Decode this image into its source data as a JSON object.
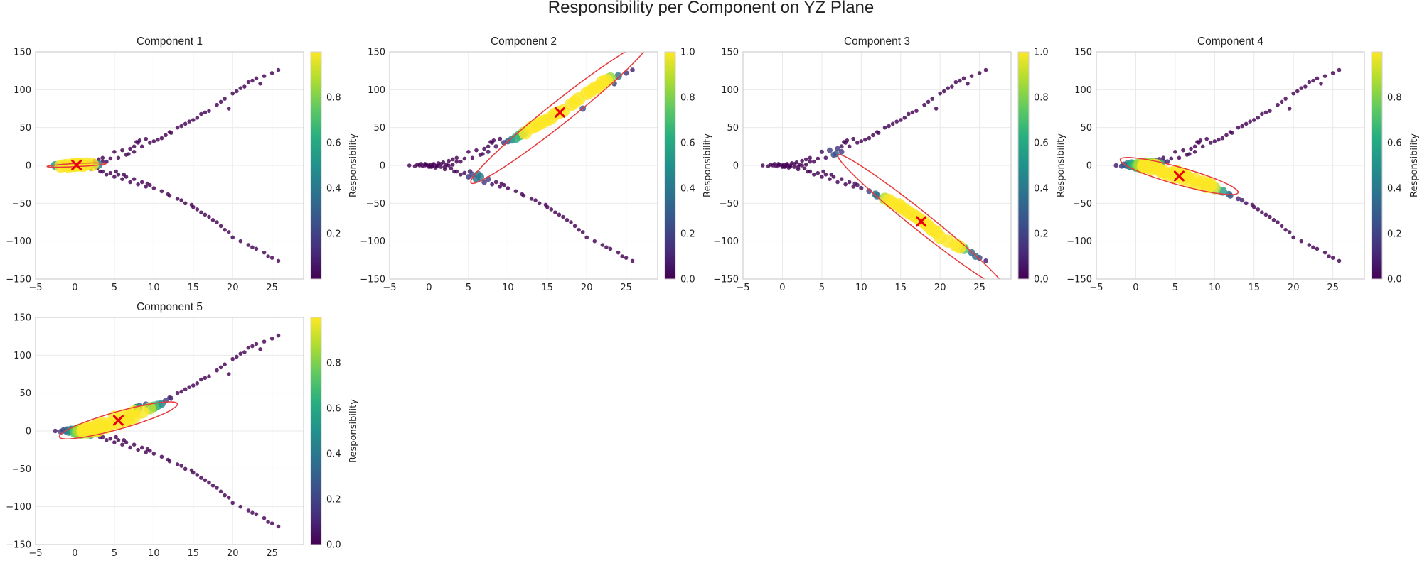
{
  "figure": {
    "title": "Responsibility per Component on YZ Plane",
    "colorbar_label": "Responsibility"
  },
  "chart_data": {
    "type": "scatter",
    "colormap": "viridis",
    "xlim": [
      -5,
      29
    ],
    "ylim": [
      -150,
      150
    ],
    "xticks": [
      "−5",
      "0",
      "5",
      "10",
      "15",
      "20",
      "25"
    ],
    "yticks": [
      "150",
      "100",
      "50",
      "0",
      "−50",
      "−100",
      "−150"
    ],
    "grid": true,
    "ellipse_color": "#e8393b",
    "center_marker_color": "#e8000b",
    "points": {
      "left": [
        [
          -2.5,
          0
        ],
        [
          -1.8,
          -1
        ],
        [
          -1.5,
          1
        ],
        [
          -1.2,
          0
        ],
        [
          -1,
          2
        ],
        [
          -0.8,
          -1
        ],
        [
          -0.5,
          0
        ],
        [
          -0.3,
          1
        ],
        [
          0,
          -2
        ],
        [
          0,
          0
        ],
        [
          0.2,
          1
        ],
        [
          0.4,
          -1
        ],
        [
          0.6,
          2
        ],
        [
          0.8,
          -3
        ],
        [
          1,
          0
        ],
        [
          1.2,
          3
        ],
        [
          1.5,
          -2
        ],
        [
          1.8,
          4
        ],
        [
          2,
          -5
        ],
        [
          2.2,
          1
        ],
        [
          2.5,
          6
        ],
        [
          2.8,
          -4
        ],
        [
          3,
          8
        ],
        [
          3.2,
          -8
        ],
        [
          3.5,
          5
        ],
        [
          0.5,
          0.5
        ],
        [
          1,
          -1.5
        ],
        [
          1.5,
          2
        ],
        [
          2,
          -2
        ],
        [
          2.5,
          0
        ],
        [
          3,
          1
        ],
        [
          -0.5,
          2
        ],
        [
          0.3,
          -2
        ]
      ],
      "upper": [
        [
          3.5,
          10
        ],
        [
          4,
          5
        ],
        [
          4.5,
          9
        ],
        [
          5,
          18
        ],
        [
          5.5,
          10
        ],
        [
          6,
          20
        ],
        [
          6.5,
          14
        ],
        [
          7,
          22
        ],
        [
          7.5,
          18
        ],
        [
          8,
          30
        ],
        [
          8.5,
          25
        ],
        [
          9,
          35
        ],
        [
          9.5,
          30
        ],
        [
          10,
          32
        ],
        [
          11,
          36
        ],
        [
          11.5,
          40
        ],
        [
          12,
          44
        ],
        [
          13,
          50
        ],
        [
          13.5,
          52
        ],
        [
          14,
          55
        ],
        [
          15,
          60
        ],
        [
          15.5,
          63
        ],
        [
          16,
          68
        ],
        [
          17,
          72
        ],
        [
          18,
          80
        ],
        [
          18.5,
          84
        ],
        [
          19,
          88
        ],
        [
          20,
          95
        ],
        [
          20.5,
          98
        ],
        [
          21,
          102
        ],
        [
          22,
          110
        ],
        [
          22.5,
          112
        ],
        [
          23,
          115
        ],
        [
          24,
          118
        ],
        [
          25,
          122
        ],
        [
          25.8,
          126
        ],
        [
          7.8,
          31
        ],
        [
          8.2,
          33
        ],
        [
          7.5,
          25
        ],
        [
          6.8,
          15
        ],
        [
          12.2,
          43
        ],
        [
          14.5,
          58
        ],
        [
          16.5,
          70
        ],
        [
          19.5,
          75
        ],
        [
          21.5,
          104
        ],
        [
          23.5,
          108
        ],
        [
          10.5,
          34
        ]
      ],
      "lower": [
        [
          3.5,
          -8
        ],
        [
          4,
          -12
        ],
        [
          4.5,
          -10
        ],
        [
          5,
          -15
        ],
        [
          5.5,
          -12
        ],
        [
          6,
          -18
        ],
        [
          6.5,
          -15
        ],
        [
          7,
          -22
        ],
        [
          7.5,
          -18
        ],
        [
          8,
          -25
        ],
        [
          8.5,
          -22
        ],
        [
          9,
          -28
        ],
        [
          9.5,
          -26
        ],
        [
          10,
          -30
        ],
        [
          11,
          -34
        ],
        [
          12,
          -40
        ],
        [
          13,
          -44
        ],
        [
          13.5,
          -46
        ],
        [
          14,
          -50
        ],
        [
          15,
          -55
        ],
        [
          15.5,
          -58
        ],
        [
          16,
          -62
        ],
        [
          16.5,
          -65
        ],
        [
          17,
          -68
        ],
        [
          18,
          -75
        ],
        [
          18.5,
          -80
        ],
        [
          19,
          -85
        ],
        [
          20,
          -95
        ],
        [
          21,
          -100
        ],
        [
          22,
          -105
        ],
        [
          23,
          -110
        ],
        [
          24,
          -115
        ],
        [
          25,
          -122
        ],
        [
          25.8,
          -126
        ],
        [
          5.2,
          -8
        ],
        [
          6.2,
          -12
        ],
        [
          9.2,
          -24
        ],
        [
          11.8,
          -38
        ],
        [
          14.8,
          -52
        ],
        [
          17.5,
          -72
        ],
        [
          19.5,
          -88
        ],
        [
          22.5,
          -108
        ],
        [
          24.5,
          -120
        ]
      ]
    },
    "panels": [
      {
        "title": "Component 1",
        "mean": [
          0.2,
          0.5
        ],
        "cov": [
          [
            3.5,
            1.8
          ],
          [
            1.8,
            2.0
          ]
        ],
        "ticks": [
          "0.8",
          "0.6",
          "0.4",
          "0.2"
        ],
        "tick_values": [
          0.8,
          0.6,
          0.4,
          0.2
        ],
        "cmax": 1.0
      },
      {
        "title": "Component 2",
        "mean": [
          16.6,
          70
        ],
        "cov": [
          [
            32,
            260
          ],
          [
            260,
            2200
          ]
        ],
        "ticks": [
          "1.0",
          "0.8",
          "0.6",
          "0.4",
          "0.2",
          "0.0"
        ],
        "tick_values": [
          1.0,
          0.8,
          0.6,
          0.4,
          0.2,
          0.0
        ],
        "cmax": 1.0
      },
      {
        "title": "Component 3",
        "mean": [
          17.6,
          -74
        ],
        "cov": [
          [
            28,
            -230
          ],
          [
            -230,
            1950
          ]
        ],
        "ticks": [
          "1.0",
          "0.8",
          "0.6",
          "0.4",
          "0.2",
          "0.0"
        ],
        "tick_values": [
          1.0,
          0.8,
          0.6,
          0.4,
          0.2,
          0.0
        ],
        "cmax": 1.0
      },
      {
        "title": "Component 4",
        "mean": [
          5.5,
          -14
        ],
        "cov": [
          [
            14,
            -40
          ],
          [
            -40,
            150
          ]
        ],
        "ticks": [
          "0.8",
          "0.6",
          "0.4",
          "0.2",
          "0.0"
        ],
        "tick_values": [
          0.8,
          0.6,
          0.4,
          0.2,
          0.0
        ],
        "cmax": 1.0
      },
      {
        "title": "Component 5",
        "mean": [
          5.5,
          14
        ],
        "cov": [
          [
            14,
            40
          ],
          [
            40,
            150
          ]
        ],
        "ticks": [
          "0.8",
          "0.6",
          "0.4",
          "0.2",
          "0.0"
        ],
        "tick_values": [
          0.8,
          0.6,
          0.4,
          0.2,
          0.0
        ],
        "cmax": 1.0
      }
    ]
  }
}
